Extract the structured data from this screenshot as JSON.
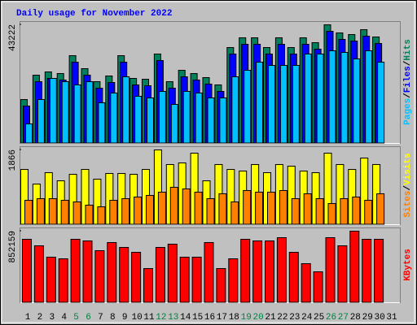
{
  "chart_data": [
    {
      "type": "bar",
      "title": "Daily usage for November 2022",
      "series": [
        {
          "name": "Hits",
          "color": "#00805c",
          "values": [
            15986,
            24867,
            26052,
            25459,
            31972,
            27236,
            22499,
            24571,
            31972,
            23683,
            23387,
            32564,
            22499,
            26644,
            25459,
            23979,
            21315,
            34933,
            38485,
            38485,
            34933,
            38485,
            34933,
            38485,
            36709,
            43222,
            40262,
            39670,
            41446,
            38781,
            null
          ]
        },
        {
          "name": "Files",
          "color": "#0000ff",
          "values": [
            13618,
            22499,
            23683,
            23091,
            29604,
            24867,
            20131,
            22203,
            29604,
            21315,
            21019,
            30196,
            20131,
            24275,
            23091,
            21611,
            18947,
            32564,
            36117,
            36117,
            32564,
            36117,
            32564,
            36117,
            34341,
            40854,
            37893,
            37301,
            39077,
            36413,
            null
          ]
        },
        {
          "name": "Pages",
          "color": "#00c0ff",
          "values": [
            7105,
            15986,
            23683,
            22499,
            21315,
            22499,
            14802,
            18354,
            24275,
            17170,
            16578,
            18947,
            14210,
            18947,
            18354,
            16578,
            16578,
            24275,
            26644,
            29604,
            28420,
            28420,
            28420,
            32564,
            32564,
            33748,
            33156,
            30788,
            33748,
            29604,
            null
          ]
        }
      ],
      "ylim": [
        0,
        43222
      ],
      "yticks": [
        43222
      ],
      "legend_separator": "/"
    },
    {
      "type": "bar",
      "series": [
        {
          "name": "Visits",
          "color": "#ffff00",
          "values": [
            1379,
            1014,
            1298,
            1095,
            1257,
            1379,
            1136,
            1278,
            1278,
            1257,
            1379,
            1866,
            1501,
            1541,
            1785,
            1095,
            1501,
            1379,
            1338,
            1501,
            1298,
            1501,
            1460,
            1338,
            1298,
            1785,
            1501,
            1379,
            1663,
            1501,
            null
          ]
        },
        {
          "name": "Sites",
          "color": "#ff8000",
          "values": [
            608,
            649,
            649,
            608,
            568,
            487,
            446,
            608,
            649,
            690,
            730,
            811,
            933,
            892,
            811,
            649,
            771,
            568,
            852,
            811,
            811,
            852,
            649,
            771,
            649,
            527,
            649,
            690,
            608,
            771,
            null
          ]
        }
      ],
      "ylim": [
        0,
        1866
      ],
      "yticks": [
        1866
      ],
      "legend_separator": "/"
    },
    {
      "type": "bar",
      "series": [
        {
          "name": "KBytes",
          "color": "#ff0000",
          "values": [
            755321,
            677852,
            542282,
            522914,
            755321,
            735954,
            619750,
            716586,
            658485,
            600383,
            406711,
            658485,
            697219,
            542282,
            542282,
            716586,
            406711,
            522914,
            755321,
            735954,
            735954,
            774688,
            600383,
            464813,
            367977,
            774688,
            677852,
            852159,
            755321,
            755321,
            null
          ]
        }
      ],
      "ylim": [
        0,
        852159
      ],
      "yticks": [
        852159
      ],
      "categories": [
        "1",
        "2",
        "3",
        "4",
        "5",
        "6",
        "7",
        "8",
        "9",
        "10",
        "11",
        "12",
        "13",
        "14",
        "15",
        "16",
        "17",
        "18",
        "19",
        "20",
        "21",
        "22",
        "23",
        "24",
        "25",
        "26",
        "27",
        "28",
        "29",
        "30",
        "31"
      ],
      "category_colors": [
        "#000000",
        "#000000",
        "#000000",
        "#000000",
        "#008040",
        "#008040",
        "#000000",
        "#000000",
        "#000000",
        "#000000",
        "#000000",
        "#008040",
        "#008040",
        "#000000",
        "#000000",
        "#000000",
        "#000000",
        "#000000",
        "#008040",
        "#008040",
        "#000000",
        "#000000",
        "#000000",
        "#000000",
        "#000000",
        "#008040",
        "#008040",
        "#000000",
        "#000000",
        "#000000",
        "#000000"
      ]
    }
  ]
}
